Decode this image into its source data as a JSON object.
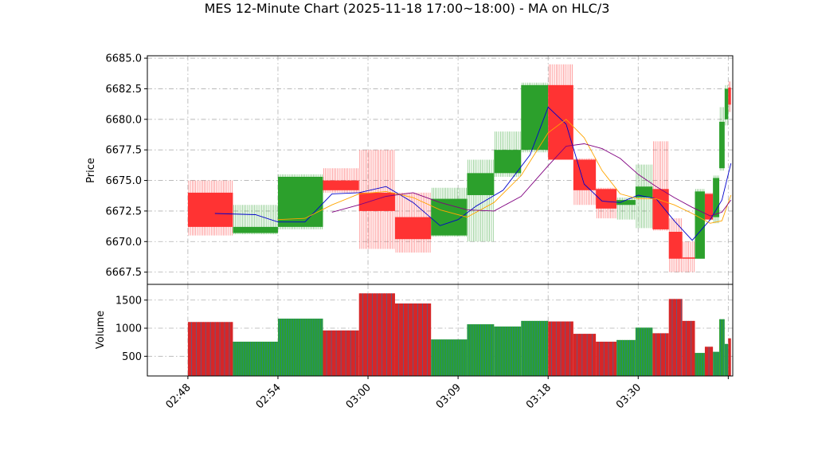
{
  "chart_data": {
    "type": "ohlc-candlestick-with-volume",
    "title": "MES 12-Minute Chart (2025-11-18 17:00~18:00) - MA on HLC/3",
    "price_panel": {
      "ylabel": "Price",
      "ylim": [
        6666.5,
        6685.2
      ],
      "yticks": [
        6667.5,
        6670.0,
        6672.5,
        6675.0,
        6677.5,
        6680.0,
        6682.5,
        6685.0
      ],
      "ytick_labels": [
        "6667.5",
        "6670.0",
        "6672.5",
        "6675.0",
        "6677.5",
        "6680.0",
        "6682.5",
        "6685.0"
      ],
      "grid": true
    },
    "volume_panel": {
      "ylabel": "Volume",
      "ylim": [
        150,
        1780
      ],
      "yticks": [
        500,
        1000,
        1500
      ],
      "ytick_labels": [
        "500",
        "1000",
        "1500"
      ],
      "grid": true
    },
    "x_axis": {
      "xlim": [
        -4.5,
        60.5
      ],
      "ticks": [
        0,
        10,
        20,
        30,
        40,
        50,
        60
      ],
      "tick_labels": [
        "02:48",
        "02:54",
        "03:00",
        "03:09",
        "03:18",
        "03:30",
        ""
      ]
    },
    "bars": [
      {
        "x0": 0,
        "x1": 5,
        "open": 6674.0,
        "high": 6675.0,
        "low": 6670.5,
        "close": 6671.2,
        "volume": 1110
      },
      {
        "x0": 5,
        "x1": 10,
        "open": 6670.7,
        "high": 6673.0,
        "low": 6670.6,
        "close": 6671.2,
        "volume": 760
      },
      {
        "x0": 10,
        "x1": 15,
        "open": 6671.2,
        "high": 6675.5,
        "low": 6671.0,
        "close": 6675.3,
        "volume": 1170
      },
      {
        "x0": 15,
        "x1": 19,
        "open": 6675.0,
        "high": 6676.0,
        "low": 6674.0,
        "close": 6674.2,
        "volume": 960
      },
      {
        "x0": 19,
        "x1": 23,
        "open": 6674.0,
        "high": 6677.5,
        "low": 6669.4,
        "close": 6672.5,
        "volume": 1620
      },
      {
        "x0": 23,
        "x1": 27,
        "open": 6672.0,
        "high": 6674.0,
        "low": 6669.1,
        "close": 6670.2,
        "volume": 1440
      },
      {
        "x0": 27,
        "x1": 31,
        "open": 6670.5,
        "high": 6674.4,
        "low": 6670.4,
        "close": 6673.5,
        "volume": 800
      },
      {
        "x0": 31,
        "x1": 34,
        "open": 6673.8,
        "high": 6676.7,
        "low": 6670.0,
        "close": 6675.6,
        "volume": 1070
      },
      {
        "x0": 34,
        "x1": 37,
        "open": 6675.6,
        "high": 6679.0,
        "low": 6675.3,
        "close": 6677.5,
        "volume": 1030
      },
      {
        "x0": 37,
        "x1": 40,
        "open": 6677.5,
        "high": 6683.0,
        "low": 6677.3,
        "close": 6682.8,
        "volume": 1130
      },
      {
        "x0": 40,
        "x1": 42.8,
        "open": 6682.8,
        "high": 6684.5,
        "low": 6676.7,
        "close": 6676.7,
        "volume": 1120
      },
      {
        "x0": 42.8,
        "x1": 45.3,
        "open": 6676.7,
        "high": 6676.8,
        "low": 6673.0,
        "close": 6674.2,
        "volume": 900
      },
      {
        "x0": 45.3,
        "x1": 47.6,
        "open": 6674.3,
        "high": 6674.4,
        "low": 6671.9,
        "close": 6672.7,
        "volume": 760
      },
      {
        "x0": 47.6,
        "x1": 49.7,
        "open": 6673.0,
        "high": 6673.6,
        "low": 6671.8,
        "close": 6673.4,
        "volume": 790
      },
      {
        "x0": 49.7,
        "x1": 51.6,
        "open": 6673.6,
        "high": 6676.3,
        "low": 6671.1,
        "close": 6674.5,
        "volume": 1010
      },
      {
        "x0": 51.6,
        "x1": 53.4,
        "open": 6674.3,
        "high": 6678.2,
        "low": 6670.9,
        "close": 6671.0,
        "volume": 910
      },
      {
        "x0": 53.4,
        "x1": 54.9,
        "open": 6670.8,
        "high": 6671.9,
        "low": 6667.5,
        "close": 6668.6,
        "volume": 1520
      },
      {
        "x0": 54.9,
        "x1": 56.3,
        "open": 6668.7,
        "high": 6670.0,
        "low": 6667.5,
        "close": 6668.6,
        "volume": 1130
      },
      {
        "x0": 56.3,
        "x1": 57.4,
        "open": 6668.6,
        "high": 6674.3,
        "low": 6668.6,
        "close": 6674.1,
        "volume": 560
      },
      {
        "x0": 57.4,
        "x1": 58.3,
        "open": 6673.9,
        "high": 6674.0,
        "low": 6671.8,
        "close": 6671.8,
        "volume": 670
      },
      {
        "x0": 58.3,
        "x1": 59.0,
        "open": 6672.0,
        "high": 6675.4,
        "low": 6671.5,
        "close": 6675.2,
        "volume": 580
      },
      {
        "x0": 59.0,
        "x1": 59.6,
        "open": 6676.0,
        "high": 6681.0,
        "low": 6675.8,
        "close": 6679.8,
        "volume": 1160
      },
      {
        "x0": 59.6,
        "x1": 60.0,
        "open": 6680.0,
        "high": 6682.8,
        "low": 6679.5,
        "close": 6682.5,
        "volume": 720
      },
      {
        "x0": 60.0,
        "x1": 60.3,
        "open": 6682.6,
        "high": 6683.1,
        "low": 6680.6,
        "close": 6681.2,
        "volume": 820
      }
    ],
    "series": [
      {
        "color": "#0000cc",
        "x": [
          3,
          7.5,
          10,
          13,
          16,
          19,
          22,
          25,
          28,
          30,
          32,
          35,
          38,
          40,
          42,
          44,
          46,
          48,
          50,
          52,
          54,
          56,
          58,
          59.3,
          60.3
        ],
        "y": [
          6672.3,
          6672.2,
          6671.6,
          6671.6,
          6673.9,
          6674.0,
          6674.5,
          6673.2,
          6671.3,
          6671.8,
          6672.9,
          6674.2,
          6677.1,
          6681.0,
          6679.6,
          6674.7,
          6673.3,
          6673.2,
          6673.8,
          6673.5,
          6671.7,
          6670.1,
          6671.8,
          6673.4,
          6676.4
        ]
      },
      {
        "color": "#ffa500",
        "x": [
          10,
          13,
          16,
          19,
          22,
          25,
          28,
          31,
          34,
          37,
          40,
          42,
          44,
          46,
          48,
          50,
          52,
          54,
          56,
          58,
          59.3,
          60.3
        ],
        "y": [
          6671.8,
          6671.9,
          6673.0,
          6673.9,
          6674.1,
          6673.6,
          6672.6,
          6672.0,
          6673.2,
          6675.4,
          6678.9,
          6680.0,
          6678.5,
          6675.8,
          6673.9,
          6673.5,
          6673.5,
          6673.0,
          6672.3,
          6671.5,
          6671.7,
          6673.8
        ]
      },
      {
        "color": "#800080",
        "x": [
          16,
          19,
          22,
          25,
          28,
          31,
          34,
          37,
          40,
          42,
          44,
          46,
          48,
          50,
          52,
          54,
          56,
          58,
          59.3,
          60.3
        ],
        "y": [
          6672.4,
          6673.0,
          6673.7,
          6674.0,
          6673.2,
          6672.6,
          6672.5,
          6673.7,
          6676.2,
          6677.8,
          6678.0,
          6677.6,
          6676.8,
          6675.5,
          6674.5,
          6673.6,
          6672.8,
          6672.1,
          6672.4,
          6673.4
        ]
      }
    ],
    "colors": {
      "up": "#2ca02c",
      "down": "#ff3333",
      "vol_a": "#1f77b4",
      "vol_b": "#d62728",
      "vol_c": "#2ca02c",
      "grid": "#b0b0b0"
    }
  }
}
